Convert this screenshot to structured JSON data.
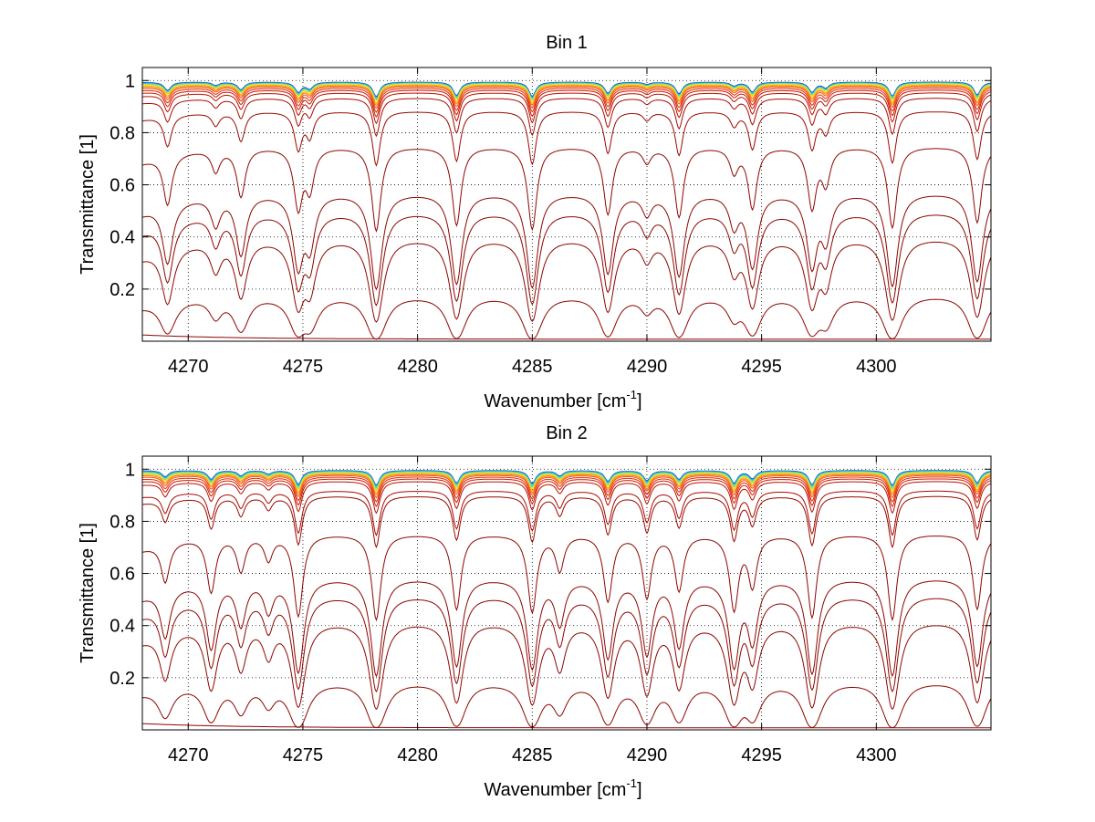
{
  "chart_data": [
    {
      "type": "line",
      "title": "Bin 1",
      "xlabel": "Wavenumber [cm",
      "xlabel_sup": "-1",
      "xlabel_end": "]",
      "ylabel": "Transmittance [1]",
      "xlim": [
        4268,
        4305
      ],
      "ylim": [
        0,
        1.05
      ],
      "xticks": [
        4270,
        4275,
        4280,
        4285,
        4290,
        4295,
        4300
      ],
      "yticks": [
        0.2,
        0.4,
        0.6,
        0.8,
        1
      ],
      "ytick_labels": [
        "0.2",
        "0.4",
        "0.6",
        "0.8",
        "1"
      ],
      "grid": "dotted",
      "absorption_lines": [
        {
          "x": 4269.1,
          "depth": 0.45
        },
        {
          "x": 4271.2,
          "depth": 0.18
        },
        {
          "x": 4272.3,
          "depth": 0.42
        },
        {
          "x": 4274.8,
          "depth": 0.55
        },
        {
          "x": 4275.3,
          "depth": 0.35
        },
        {
          "x": 4278.2,
          "depth": 0.82
        },
        {
          "x": 4281.7,
          "depth": 0.75
        },
        {
          "x": 4285.0,
          "depth": 0.8
        },
        {
          "x": 4288.3,
          "depth": 0.62
        },
        {
          "x": 4290.0,
          "depth": 0.12
        },
        {
          "x": 4291.4,
          "depth": 0.65
        },
        {
          "x": 4293.8,
          "depth": 0.2
        },
        {
          "x": 4294.6,
          "depth": 0.55
        },
        {
          "x": 4297.2,
          "depth": 0.55
        },
        {
          "x": 4297.8,
          "depth": 0.3
        },
        {
          "x": 4300.7,
          "depth": 0.78
        },
        {
          "x": 4304.4,
          "depth": 0.72
        }
      ],
      "series": [
        {
          "baseline": 0.995,
          "color": "#1f3fd0"
        },
        {
          "baseline": 0.993,
          "color": "#18b8e8"
        },
        {
          "baseline": 0.991,
          "color": "#40e0c0"
        },
        {
          "baseline": 0.99,
          "color": "#9ce050"
        },
        {
          "baseline": 0.988,
          "color": "#f0e030"
        },
        {
          "baseline": 0.985,
          "color": "#f8b020"
        },
        {
          "baseline": 0.982,
          "color": "#f88010"
        },
        {
          "baseline": 0.978,
          "color": "#f05010"
        },
        {
          "baseline": 0.972,
          "color": "#e02808"
        },
        {
          "baseline": 0.965,
          "color": "#cc1800"
        },
        {
          "baseline": 0.955,
          "color": "#b81000"
        },
        {
          "baseline": 0.935,
          "color": "#a80a00"
        },
        {
          "baseline": 0.885,
          "color": "#9a0800"
        },
        {
          "baseline": 0.75,
          "color": "#8c0600"
        },
        {
          "baseline": 0.575,
          "color": "#8c0600"
        },
        {
          "baseline": 0.505,
          "color": "#8c0600"
        },
        {
          "baseline": 0.405,
          "color": "#8c0600"
        },
        {
          "baseline": 0.185,
          "color": "#8c0600"
        },
        {
          "baseline": 0.008,
          "color": "#8c0600"
        }
      ]
    },
    {
      "type": "line",
      "title": "Bin 2",
      "xlabel": "Wavenumber [cm",
      "xlabel_sup": "-1",
      "xlabel_end": "]",
      "ylabel": "Transmittance [1]",
      "xlim": [
        4268,
        4305
      ],
      "ylim": [
        0,
        1.05
      ],
      "xticks": [
        4270,
        4275,
        4280,
        4285,
        4290,
        4295,
        4300
      ],
      "yticks": [
        0.2,
        0.4,
        0.6,
        0.8,
        1
      ],
      "ytick_labels": [
        "0.2",
        "0.4",
        "0.6",
        "0.8",
        "1"
      ],
      "grid": "dotted",
      "absorption_lines": [
        {
          "x": 4269.0,
          "depth": 0.35
        },
        {
          "x": 4271.0,
          "depth": 0.5
        },
        {
          "x": 4272.3,
          "depth": 0.3
        },
        {
          "x": 4273.5,
          "depth": 0.2
        },
        {
          "x": 4274.8,
          "depth": 0.8
        },
        {
          "x": 4278.2,
          "depth": 0.85
        },
        {
          "x": 4281.7,
          "depth": 0.72
        },
        {
          "x": 4285.0,
          "depth": 0.75
        },
        {
          "x": 4286.2,
          "depth": 0.3
        },
        {
          "x": 4288.3,
          "depth": 0.62
        },
        {
          "x": 4290.0,
          "depth": 0.58
        },
        {
          "x": 4291.4,
          "depth": 0.5
        },
        {
          "x": 4293.8,
          "depth": 0.72
        },
        {
          "x": 4294.6,
          "depth": 0.45
        },
        {
          "x": 4297.2,
          "depth": 0.82
        },
        {
          "x": 4300.7,
          "depth": 0.85
        },
        {
          "x": 4304.4,
          "depth": 0.72
        }
      ],
      "series": [
        {
          "baseline": 0.996,
          "color": "#1f3fd0"
        },
        {
          "baseline": 0.994,
          "color": "#18b8e8"
        },
        {
          "baseline": 0.992,
          "color": "#40e0c0"
        },
        {
          "baseline": 0.99,
          "color": "#9ce050"
        },
        {
          "baseline": 0.988,
          "color": "#f0e030"
        },
        {
          "baseline": 0.985,
          "color": "#f8b020"
        },
        {
          "baseline": 0.982,
          "color": "#f88010"
        },
        {
          "baseline": 0.978,
          "color": "#f05010"
        },
        {
          "baseline": 0.972,
          "color": "#e02808"
        },
        {
          "baseline": 0.965,
          "color": "#cc1800"
        },
        {
          "baseline": 0.955,
          "color": "#b81000"
        },
        {
          "baseline": 0.92,
          "color": "#a80a00"
        },
        {
          "baseline": 0.9,
          "color": "#9a0800"
        },
        {
          "baseline": 0.755,
          "color": "#8c0600"
        },
        {
          "baseline": 0.59,
          "color": "#8c0600"
        },
        {
          "baseline": 0.525,
          "color": "#8c0600"
        },
        {
          "baseline": 0.425,
          "color": "#8c0600"
        },
        {
          "baseline": 0.195,
          "color": "#8c0600"
        },
        {
          "baseline": 0.008,
          "color": "#8c0600"
        }
      ]
    }
  ]
}
